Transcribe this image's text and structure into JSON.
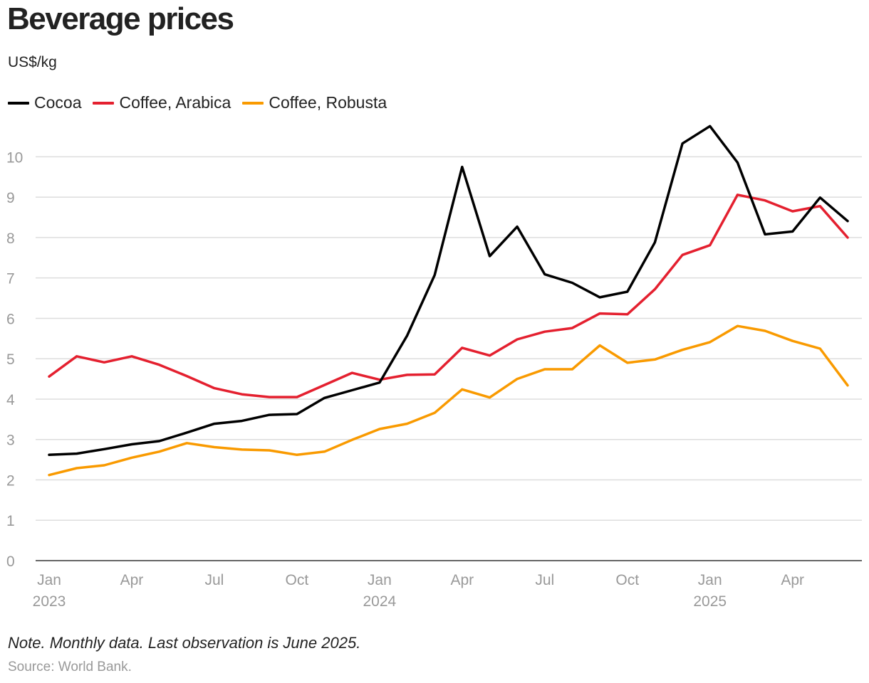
{
  "title": "Beverage prices",
  "subtitle": "US$/kg",
  "note": "Note. Monthly data. Last observation is June 2025.",
  "source": "Source: World Bank.",
  "colors": {
    "Cocoa": "#000000",
    "Coffee, Arabica": "#e4202f",
    "Coffee, Robusta": "#f99a00",
    "grid": "#dddddd",
    "tick_label": "#999999"
  },
  "chart_data": {
    "type": "line",
    "x": [
      "2023-01",
      "2023-02",
      "2023-03",
      "2023-04",
      "2023-05",
      "2023-06",
      "2023-07",
      "2023-08",
      "2023-09",
      "2023-10",
      "2023-11",
      "2023-12",
      "2024-01",
      "2024-02",
      "2024-03",
      "2024-04",
      "2024-05",
      "2024-06",
      "2024-07",
      "2024-08",
      "2024-09",
      "2024-10",
      "2024-11",
      "2024-12",
      "2025-01",
      "2025-02",
      "2025-03",
      "2025-04",
      "2025-05",
      "2025-06"
    ],
    "series": [
      {
        "name": "Cocoa",
        "values": [
          2.62,
          2.65,
          2.76,
          2.88,
          2.96,
          3.17,
          3.39,
          3.46,
          3.61,
          3.63,
          4.03,
          4.22,
          4.41,
          5.57,
          7.07,
          9.75,
          7.54,
          8.27,
          7.09,
          6.88,
          6.52,
          6.66,
          7.88,
          10.33,
          10.76,
          9.86,
          8.08,
          8.15,
          8.99,
          8.41
        ]
      },
      {
        "name": "Coffee, Arabica",
        "values": [
          4.56,
          5.06,
          4.91,
          5.06,
          4.85,
          4.57,
          4.27,
          4.12,
          4.05,
          4.05,
          4.35,
          4.65,
          4.48,
          4.6,
          4.61,
          5.27,
          5.08,
          5.48,
          5.67,
          5.76,
          6.12,
          6.1,
          6.72,
          7.57,
          7.81,
          9.06,
          8.92,
          8.65,
          8.78,
          8.0
        ]
      },
      {
        "name": "Coffee, Robusta",
        "values": [
          2.12,
          2.29,
          2.36,
          2.55,
          2.7,
          2.91,
          2.81,
          2.75,
          2.73,
          2.62,
          2.7,
          2.99,
          3.26,
          3.39,
          3.66,
          4.24,
          4.04,
          4.5,
          4.74,
          4.74,
          5.33,
          4.9,
          4.98,
          5.22,
          5.41,
          5.81,
          5.69,
          5.44,
          5.25,
          4.34
        ]
      }
    ],
    "ylim": [
      0,
      10.8
    ],
    "yticks": [
      0,
      1,
      2,
      3,
      4,
      5,
      6,
      7,
      8,
      9,
      10
    ],
    "xticks": [
      {
        "label": "Jan",
        "sub": "2023",
        "index": 0
      },
      {
        "label": "Apr",
        "sub": "",
        "index": 3
      },
      {
        "label": "Jul",
        "sub": "",
        "index": 6
      },
      {
        "label": "Oct",
        "sub": "",
        "index": 9
      },
      {
        "label": "Jan",
        "sub": "2024",
        "index": 12
      },
      {
        "label": "Apr",
        "sub": "",
        "index": 15
      },
      {
        "label": "Jul",
        "sub": "",
        "index": 18
      },
      {
        "label": "Oct",
        "sub": "",
        "index": 21
      },
      {
        "label": "Jan",
        "sub": "2025",
        "index": 24
      },
      {
        "label": "Apr",
        "sub": "",
        "index": 27
      }
    ],
    "grid": true,
    "legend": "top-left"
  }
}
